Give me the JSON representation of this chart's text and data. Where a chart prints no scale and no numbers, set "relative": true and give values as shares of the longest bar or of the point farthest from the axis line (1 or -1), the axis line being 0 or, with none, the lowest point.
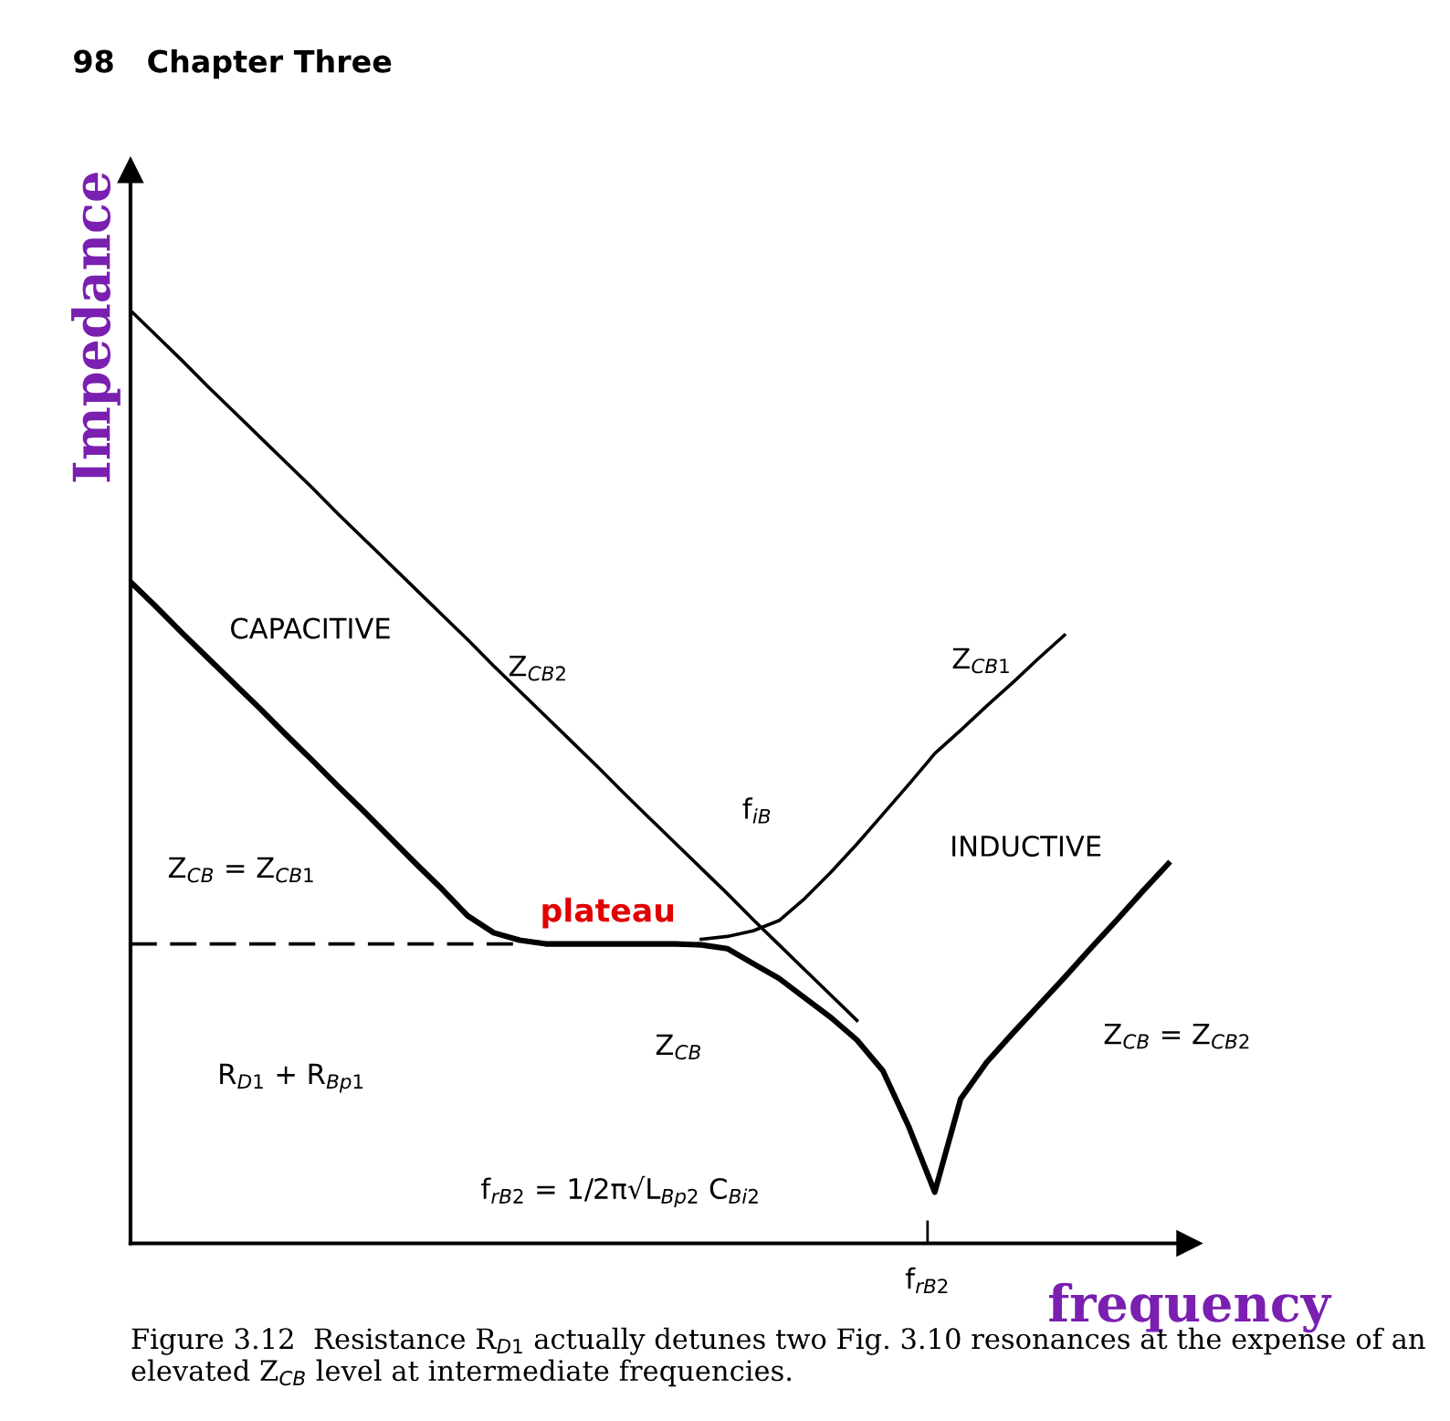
{
  "chart_data": {
    "type": "line",
    "relative": true,
    "title": "98   Chapter Three",
    "xlabel": "frequency",
    "ylabel": "Impedance",
    "categories": [
      null,
      null,
      null,
      null,
      null,
      null,
      null,
      null,
      null,
      null,
      null,
      null,
      null,
      null,
      null,
      null,
      null,
      null,
      null,
      null,
      null,
      null,
      null,
      null,
      null,
      null,
      null,
      null,
      null,
      null,
      null,
      null,
      null,
      null,
      null,
      null,
      null,
      null,
      null,
      null,
      null
    ],
    "series": [
      {
        "color": "#000000",
        "values": [
          1.0,
          0.973,
          0.946,
          0.918,
          0.891,
          0.864,
          0.837,
          0.81,
          0.782,
          0.755,
          0.728,
          0.701,
          0.674,
          0.647,
          0.619,
          0.592,
          0.565,
          0.538,
          0.511,
          0.483,
          0.456,
          0.429,
          0.402,
          0.375,
          0.347,
          0.32,
          0.293,
          0.266,
          0.239,
          null,
          null,
          null,
          null,
          null,
          null,
          null,
          null,
          null,
          null,
          null,
          null
        ]
      },
      {
        "color": "#000000",
        "values": [
          null,
          null,
          null,
          null,
          null,
          null,
          null,
          null,
          null,
          null,
          null,
          null,
          null,
          null,
          null,
          null,
          null,
          null,
          null,
          null,
          null,
          null,
          0.326,
          0.329,
          0.335,
          0.346,
          0.37,
          0.398,
          0.428,
          0.46,
          0.492,
          0.525,
          0.55,
          0.576,
          0.601,
          0.627,
          0.652,
          null,
          null,
          null,
          null
        ]
      },
      {
        "color": "#000000",
        "values": [
          0.709,
          0.682,
          0.654,
          0.627,
          0.6,
          0.573,
          0.545,
          0.518,
          0.49,
          0.463,
          0.435,
          0.407,
          0.38,
          0.351,
          0.333,
          0.325,
          0.321,
          0.321,
          0.321,
          0.321,
          0.321,
          0.321,
          0.32,
          0.316,
          0.3,
          0.284,
          0.263,
          0.242,
          0.218,
          0.185,
          0.125,
          0.055,
          0.155,
          0.194,
          0.225,
          0.255,
          0.285,
          0.316,
          0.346,
          0.377,
          0.407
        ]
      },
      {
        "color": "#000000",
        "line_style": "dashed",
        "values": [
          0.321,
          0.321,
          0.321,
          0.321,
          0.321,
          0.321,
          0.321,
          0.321,
          0.321,
          0.321,
          0.321,
          0.321,
          0.321,
          0.321,
          0.321,
          0.321,
          null,
          null,
          null,
          null,
          null,
          null,
          null,
          null,
          null,
          null,
          null,
          null,
          null,
          null,
          null,
          null,
          null,
          null,
          null,
          null,
          null,
          null,
          null,
          null,
          null
        ]
      }
    ],
    "annotations": [
      "CAPACITIVE",
      "Z$_{CB2}$",
      "Z$_{CB1}$",
      "f$_{rB2}$",
      "f$_{iB}$",
      "INDUCTIVE",
      "Z$_{CB}$ = Z$_{CB1}$",
      "plateau",
      "Z$_{CB}$",
      "Z$_{CB}$ = Z$_{CB2}$",
      "R$_{D1}$ + R$_{Bp1}$",
      "f$_{rB2}$ = 1/2π√L$_{Bp2}$ C$_{Bi2}$",
      "Figure 3.12  Resistance R$_{D1}$ actually detunes two Fig. 3.10 resonances at the expense of an elevated Z$_{CB}$ level at intermediate frequencies."
    ]
  }
}
